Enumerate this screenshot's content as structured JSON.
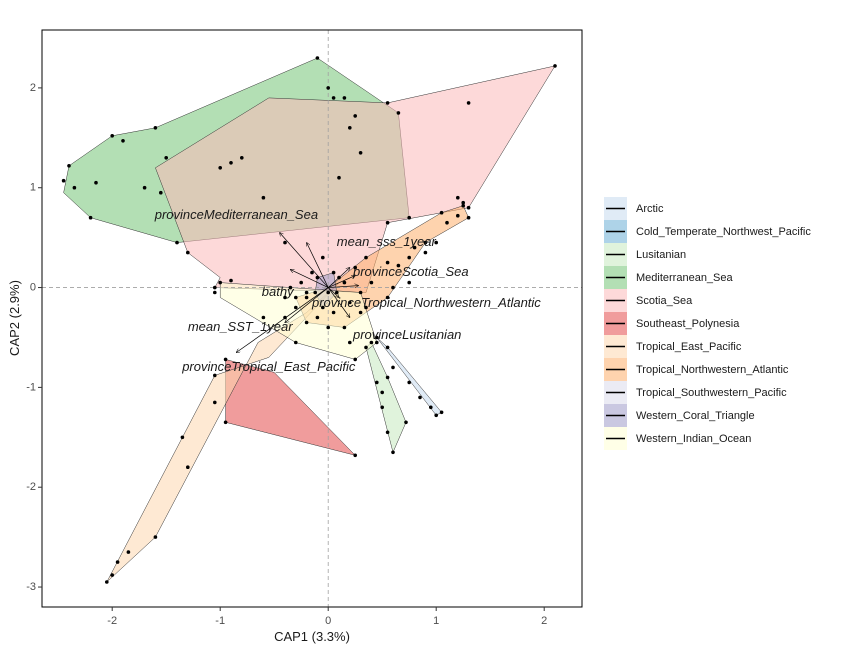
{
  "chart_data": {
    "type": "scatter",
    "title": "",
    "xlabel": "CAP1 (3.3%)",
    "ylabel": "CAP2 (2.9%)",
    "xlim": [
      -2.65,
      2.35
    ],
    "ylim": [
      -3.2,
      2.58
    ],
    "x_ticks": [
      -2,
      -1,
      0,
      1,
      2
    ],
    "y_ticks": [
      -3,
      -2,
      -1,
      0,
      1,
      2
    ],
    "grid": false,
    "reference_lines": {
      "x": 0,
      "y": 0,
      "style": "dashed"
    },
    "legend_position": "right",
    "groups": [
      {
        "name": "Arctic",
        "color": "#c6dbef",
        "hull": [
          [
            0.45,
            -0.5
          ],
          [
            1.0,
            -1.28
          ],
          [
            1.05,
            -1.25
          ],
          [
            0.55,
            -0.6
          ]
        ],
        "points": [
          [
            0.45,
            -0.5
          ],
          [
            0.6,
            -0.8
          ],
          [
            0.75,
            -0.95
          ],
          [
            0.85,
            -1.1
          ],
          [
            0.95,
            -1.2
          ],
          [
            1.0,
            -1.28
          ],
          [
            1.05,
            -1.25
          ],
          [
            0.55,
            -0.6
          ]
        ]
      },
      {
        "name": "Cold_Temperate_Northwest_Pacific",
        "color": "#6baed6",
        "hull": [],
        "points": []
      },
      {
        "name": "Lusitanian",
        "color": "#c7e9c0",
        "hull": [
          [
            0.35,
            -0.6
          ],
          [
            0.6,
            -1.65
          ],
          [
            0.72,
            -1.35
          ],
          [
            0.55,
            -0.9
          ],
          [
            0.4,
            -0.55
          ]
        ],
        "points": [
          [
            0.35,
            -0.6
          ],
          [
            0.45,
            -0.95
          ],
          [
            0.5,
            -1.2
          ],
          [
            0.55,
            -1.45
          ],
          [
            0.6,
            -1.65
          ],
          [
            0.72,
            -1.35
          ],
          [
            0.55,
            -0.9
          ],
          [
            0.4,
            -0.55
          ],
          [
            0.5,
            -1.05
          ]
        ]
      },
      {
        "name": "Mediterranean_Sea",
        "color": "#74c476",
        "hull": [
          [
            -2.4,
            1.22
          ],
          [
            -2.0,
            1.52
          ],
          [
            -1.6,
            1.6
          ],
          [
            -0.1,
            2.3
          ],
          [
            0.65,
            1.75
          ],
          [
            0.75,
            0.7
          ],
          [
            -1.4,
            0.45
          ],
          [
            -2.2,
            0.7
          ],
          [
            -2.45,
            0.95
          ]
        ],
        "points": [
          [
            -2.4,
            1.22
          ],
          [
            -2.45,
            1.07
          ],
          [
            -2.35,
            1.0
          ],
          [
            -2.15,
            1.05
          ],
          [
            -2.0,
            1.52
          ],
          [
            -1.9,
            1.47
          ],
          [
            -1.6,
            1.6
          ],
          [
            -1.7,
            1.0
          ],
          [
            -1.55,
            0.95
          ],
          [
            -1.5,
            1.3
          ],
          [
            -1.0,
            1.2
          ],
          [
            -0.9,
            1.25
          ],
          [
            -0.8,
            1.3
          ],
          [
            -0.1,
            2.3
          ],
          [
            0.0,
            2.0
          ],
          [
            0.05,
            1.9
          ],
          [
            0.15,
            1.9
          ],
          [
            0.25,
            1.72
          ],
          [
            0.2,
            1.6
          ],
          [
            0.3,
            1.35
          ],
          [
            0.1,
            1.1
          ],
          [
            -2.2,
            0.7
          ],
          [
            -1.4,
            0.45
          ],
          [
            -0.4,
            0.45
          ],
          [
            -0.6,
            0.9
          ],
          [
            0.65,
            1.75
          ],
          [
            0.75,
            0.7
          ]
        ]
      },
      {
        "name": "Scotia_Sea",
        "color": "#fcbaba",
        "hull": [
          [
            -1.6,
            1.2
          ],
          [
            -0.55,
            1.9
          ],
          [
            0.55,
            1.85
          ],
          [
            2.1,
            2.22
          ],
          [
            1.3,
            0.8
          ],
          [
            0.55,
            0.65
          ],
          [
            0.35,
            -0.05
          ],
          [
            -1.05,
            0.0
          ],
          [
            -1.0,
            0.1
          ],
          [
            -1.3,
            0.35
          ]
        ],
        "points": [
          [
            2.1,
            2.22
          ],
          [
            1.3,
            0.8
          ],
          [
            1.25,
            0.85
          ],
          [
            1.2,
            0.9
          ],
          [
            0.55,
            0.65
          ],
          [
            0.55,
            1.85
          ],
          [
            1.3,
            1.85
          ],
          [
            -1.05,
            0.0
          ],
          [
            -0.9,
            0.07
          ],
          [
            -1.3,
            0.35
          ]
        ]
      },
      {
        "name": "Southeast_Polynesia",
        "color": "#e34a4a",
        "hull": [
          [
            -0.95,
            -0.72
          ],
          [
            -0.95,
            -1.35
          ],
          [
            0.25,
            -1.68
          ],
          [
            -0.5,
            -0.85
          ]
        ],
        "points": [
          [
            -0.95,
            -0.72
          ],
          [
            -0.95,
            -1.35
          ],
          [
            0.25,
            -1.68
          ]
        ]
      },
      {
        "name": "Tropical_East_Pacific",
        "color": "#fdd7ae",
        "hull": [
          [
            -2.05,
            -2.95
          ],
          [
            -1.05,
            -0.88
          ],
          [
            -0.55,
            -0.7
          ],
          [
            0.1,
            0.05
          ],
          [
            -0.2,
            -0.25
          ],
          [
            -0.65,
            -0.55
          ],
          [
            -1.6,
            -2.5
          ]
        ],
        "points": [
          [
            -2.05,
            -2.95
          ],
          [
            -2.0,
            -2.88
          ],
          [
            -1.95,
            -2.75
          ],
          [
            -1.85,
            -2.65
          ],
          [
            -1.6,
            -2.5
          ],
          [
            -1.35,
            -1.5
          ],
          [
            -1.3,
            -1.8
          ],
          [
            -1.05,
            -0.88
          ],
          [
            -1.05,
            -1.15
          ]
        ]
      },
      {
        "name": "Tropical_Northwestern_Atlantic",
        "color": "#fdae6b",
        "hull": [
          [
            0.0,
            0.0
          ],
          [
            0.35,
            0.3
          ],
          [
            1.05,
            0.75
          ],
          [
            1.25,
            0.82
          ],
          [
            1.3,
            0.7
          ],
          [
            0.9,
            0.45
          ],
          [
            0.55,
            -0.1
          ],
          [
            0.15,
            -0.4
          ],
          [
            -0.2,
            -0.35
          ],
          [
            -0.3,
            -0.1
          ]
        ],
        "points": [
          [
            0.35,
            0.3
          ],
          [
            0.55,
            0.25
          ],
          [
            0.65,
            0.22
          ],
          [
            0.75,
            0.3
          ],
          [
            0.9,
            0.35
          ],
          [
            1.0,
            0.45
          ],
          [
            1.05,
            0.75
          ],
          [
            1.1,
            0.65
          ],
          [
            1.2,
            0.72
          ],
          [
            1.25,
            0.82
          ],
          [
            1.3,
            0.7
          ],
          [
            0.9,
            0.45
          ],
          [
            0.6,
            0.0
          ],
          [
            0.75,
            0.05
          ],
          [
            0.55,
            -0.1
          ],
          [
            0.15,
            -0.4
          ],
          [
            0.3,
            -0.25
          ],
          [
            -0.2,
            -0.35
          ],
          [
            -0.3,
            -0.1
          ],
          [
            0.8,
            0.4
          ]
        ]
      },
      {
        "name": "Tropical_Southwestern_Pacific",
        "color": "#dadaeb",
        "hull": [],
        "points": []
      },
      {
        "name": "Western_Coral_Triangle",
        "color": "#9e9ac8",
        "hull": [
          [
            -0.1,
            0.1
          ],
          [
            0.05,
            0.15
          ],
          [
            0.08,
            -0.05
          ],
          [
            -0.05,
            -0.2
          ],
          [
            -0.12,
            -0.05
          ]
        ],
        "points": [
          [
            -0.1,
            0.1
          ],
          [
            0.05,
            0.15
          ],
          [
            0.08,
            -0.05
          ],
          [
            -0.05,
            -0.2
          ],
          [
            -0.12,
            -0.05
          ]
        ]
      },
      {
        "name": "Western_Indian_Ocean",
        "color": "#ffffd4",
        "hull": [
          [
            -1.0,
            0.05
          ],
          [
            0.3,
            -0.05
          ],
          [
            0.45,
            -0.55
          ],
          [
            0.25,
            -0.72
          ],
          [
            -0.3,
            -0.55
          ],
          [
            -1.0,
            -0.1
          ]
        ],
        "points": [
          [
            -1.0,
            0.05
          ],
          [
            -1.05,
            -0.05
          ],
          [
            -0.4,
            -0.3
          ],
          [
            -0.6,
            -0.3
          ],
          [
            -0.3,
            -0.55
          ],
          [
            0.0,
            -0.4
          ],
          [
            0.2,
            -0.55
          ],
          [
            0.25,
            -0.72
          ],
          [
            0.45,
            -0.55
          ],
          [
            0.3,
            -0.05
          ],
          [
            -0.2,
            -0.1
          ],
          [
            -0.35,
            0.0
          ]
        ]
      }
    ],
    "extra_points": [
      [
        -0.25,
        0.05
      ],
      [
        -0.2,
        -0.05
      ],
      [
        -0.15,
        0.15
      ],
      [
        0.0,
        -0.05
      ],
      [
        0.1,
        0.1
      ],
      [
        0.2,
        -0.15
      ],
      [
        -0.3,
        -0.2
      ],
      [
        0.15,
        0.05
      ],
      [
        -0.05,
        0.3
      ],
      [
        0.25,
        0.2
      ],
      [
        -0.4,
        -0.1
      ],
      [
        0.35,
        -0.2
      ],
      [
        0.4,
        0.05
      ],
      [
        -0.1,
        -0.3
      ],
      [
        0.05,
        -0.25
      ]
    ],
    "vectors": [
      {
        "label": "provinceMediterranean_Sea",
        "end": [
          -0.45,
          0.55
        ],
        "label_pos": [
          -0.85,
          0.72
        ],
        "anchor": "middle"
      },
      {
        "label": "mean_sss_1year",
        "end": [
          -0.2,
          0.45
        ],
        "label_pos": [
          0.08,
          0.45
        ],
        "anchor": "start"
      },
      {
        "label": "provinceScotia_Sea",
        "end": [
          0.2,
          0.2
        ],
        "label_pos": [
          0.23,
          0.15
        ],
        "anchor": "start"
      },
      {
        "label": "bathy",
        "end": [
          -0.35,
          0.18
        ],
        "label_pos": [
          -0.32,
          -0.05
        ],
        "anchor": "end"
      },
      {
        "label": "provinceTropical_Northwestern_Atlantic",
        "end": [
          0.1,
          -0.1
        ],
        "label_pos": [
          -0.15,
          -0.16
        ],
        "anchor": "start"
      },
      {
        "label": "mean_SST_1year",
        "end": [
          -0.4,
          -0.35
        ],
        "label_pos": [
          -0.33,
          -0.4
        ],
        "anchor": "end"
      },
      {
        "label": "provinceLusitanian",
        "end": [
          0.2,
          -0.3
        ],
        "label_pos": [
          0.23,
          -0.48
        ],
        "anchor": "start"
      },
      {
        "label": "provinceTropical_East_Pacific",
        "end": [
          -0.85,
          -0.65
        ],
        "label_pos": [
          -0.55,
          -0.8
        ],
        "anchor": "middle"
      },
      {
        "label": "",
        "end": [
          0.28,
          0.02
        ],
        "label_pos": null,
        "anchor": "start"
      },
      {
        "label": "",
        "end": [
          0.25,
          0.12
        ],
        "label_pos": null,
        "anchor": "start"
      }
    ]
  }
}
